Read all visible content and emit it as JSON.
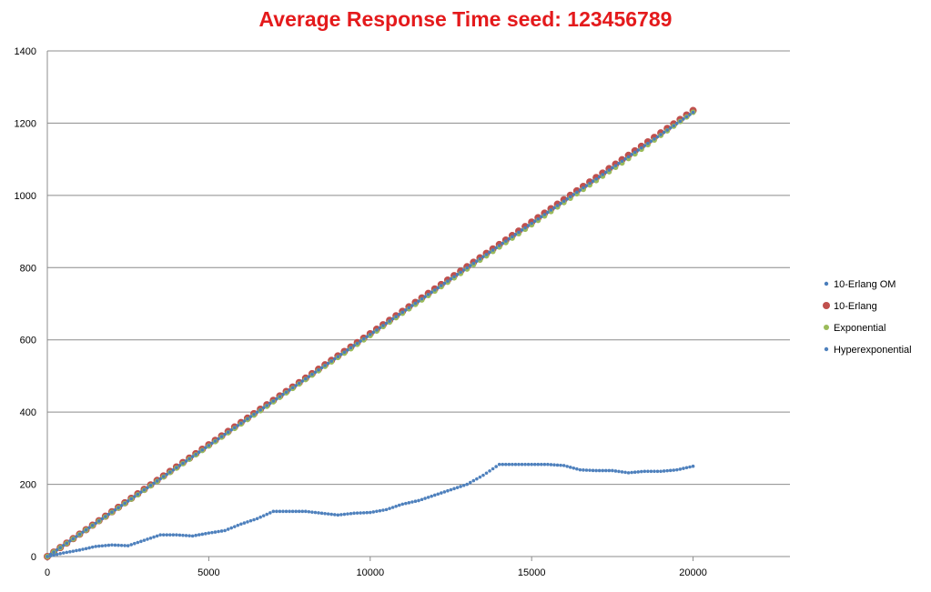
{
  "chart_data": {
    "type": "scatter",
    "title": "Average Response Time seed: 123456789",
    "xlabel": "",
    "ylabel": "",
    "xlim": [
      0,
      23000
    ],
    "ylim": [
      0,
      1400
    ],
    "x_ticks": [
      0,
      5000,
      10000,
      15000,
      20000
    ],
    "y_ticks": [
      0,
      200,
      400,
      600,
      800,
      1000,
      1200,
      1400
    ],
    "grid": "horizontal",
    "legend_position": "right",
    "series": [
      {
        "name": "10-Erlang OM",
        "color": "#4a7ebb",
        "marker": "small-dot",
        "x": [
          0,
          2000,
          4000,
          6000,
          8000,
          10000,
          12000,
          14000,
          16000,
          18000,
          20000
        ],
        "y": [
          0,
          123,
          246,
          369,
          492,
          615,
          738,
          861,
          984,
          1107,
          1230
        ]
      },
      {
        "name": "10-Erlang",
        "color": "#c0504d",
        "marker": "large-dot",
        "x": [
          0,
          2000,
          4000,
          6000,
          8000,
          10000,
          12000,
          14000,
          16000,
          18000,
          20000
        ],
        "y": [
          0,
          124,
          248,
          371,
          494,
          617,
          741,
          864,
          988,
          1111,
          1235
        ]
      },
      {
        "name": "Exponential",
        "color": "#9bbb59",
        "marker": "medium-dot",
        "x": [
          0,
          2000,
          4000,
          6000,
          8000,
          10000,
          12000,
          14000,
          16000,
          18000,
          20000
        ],
        "y": [
          0,
          122,
          245,
          367,
          490,
          612,
          735,
          857,
          980,
          1102,
          1230
        ]
      },
      {
        "name": "Hyperexponential",
        "color": "#4f81bd",
        "marker": "small-dot",
        "x": [
          0,
          500,
          1000,
          1500,
          2000,
          2500,
          3000,
          3500,
          4000,
          4500,
          5000,
          5500,
          6000,
          6500,
          7000,
          7500,
          8000,
          8500,
          9000,
          9500,
          10000,
          10500,
          11000,
          11500,
          12000,
          12500,
          13000,
          13500,
          14000,
          14500,
          15000,
          15500,
          16000,
          16500,
          17000,
          17500,
          18000,
          18500,
          19000,
          19500,
          20000
        ],
        "y": [
          0,
          10,
          18,
          28,
          32,
          30,
          45,
          60,
          60,
          57,
          65,
          72,
          90,
          105,
          125,
          125,
          125,
          120,
          115,
          120,
          122,
          130,
          145,
          155,
          170,
          185,
          200,
          225,
          255,
          255,
          255,
          255,
          252,
          240,
          238,
          238,
          232,
          236,
          236,
          240,
          250
        ]
      }
    ]
  }
}
